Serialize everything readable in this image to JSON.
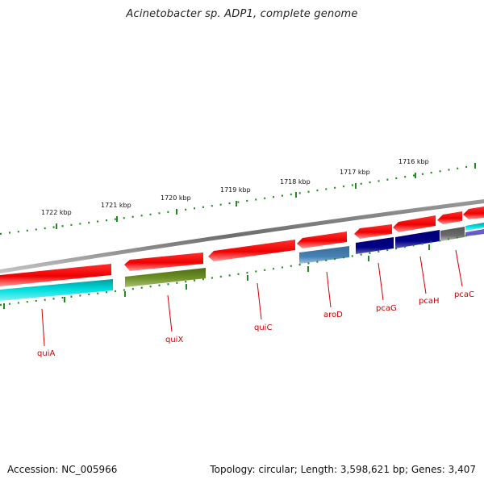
{
  "title": "Acinetobacter sp. ADP1, complete genome",
  "accession_label": "Accession: NC_005966",
  "summary_label": "Topology: circular; Length: 3,598,621 bp; Genes: 3,407",
  "ticks": [
    {
      "label": "1722 kbp"
    },
    {
      "label": "1721 kbp"
    },
    {
      "label": "1720 kbp"
    },
    {
      "label": "1719 kbp"
    },
    {
      "label": "1718 kbp"
    },
    {
      "label": "1717 kbp"
    },
    {
      "label": "1716 kbp"
    }
  ],
  "genes": [
    {
      "name": "quiA"
    },
    {
      "name": "quiX"
    },
    {
      "name": "quiC"
    },
    {
      "name": "aroD"
    },
    {
      "name": "pcaG"
    },
    {
      "name": "pcaH"
    },
    {
      "name": "pcaC"
    }
  ],
  "colors": {
    "backbone": "#808080",
    "gene_red": "#ff0000",
    "ruler": "#228b22",
    "label": "#cc0000",
    "cyan": "#00d6d6",
    "olive": "#6b8e23",
    "steelblue": "#4682b4",
    "navy": "#000080",
    "gray": "#696969"
  }
}
